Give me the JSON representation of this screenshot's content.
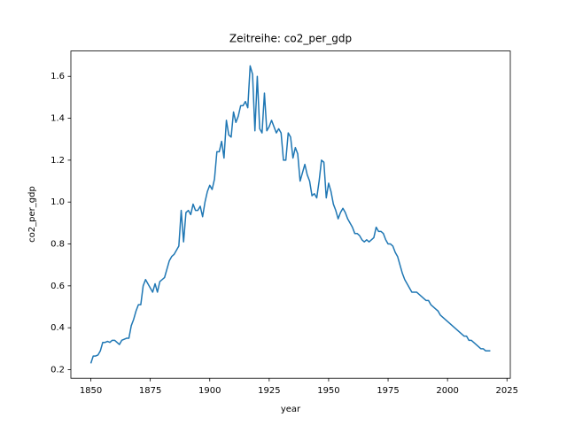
{
  "chart_data": {
    "type": "line",
    "title": "Zeitreihe: co2_per_gdp",
    "x_label": "year",
    "y_label": "co2_per_gdp",
    "color": "#1f77b4",
    "x": [
      1850,
      1851,
      1852,
      1853,
      1854,
      1855,
      1856,
      1857,
      1858,
      1859,
      1860,
      1861,
      1862,
      1863,
      1864,
      1865,
      1866,
      1867,
      1868,
      1869,
      1870,
      1871,
      1872,
      1873,
      1874,
      1875,
      1876,
      1877,
      1878,
      1879,
      1880,
      1881,
      1882,
      1883,
      1884,
      1885,
      1886,
      1887,
      1888,
      1889,
      1890,
      1891,
      1892,
      1893,
      1894,
      1895,
      1896,
      1897,
      1898,
      1899,
      1900,
      1901,
      1902,
      1903,
      1904,
      1905,
      1906,
      1907,
      1908,
      1909,
      1910,
      1911,
      1912,
      1913,
      1914,
      1915,
      1916,
      1917,
      1918,
      1919,
      1920,
      1921,
      1922,
      1923,
      1924,
      1925,
      1926,
      1927,
      1928,
      1929,
      1930,
      1931,
      1932,
      1933,
      1934,
      1935,
      1936,
      1937,
      1938,
      1939,
      1940,
      1941,
      1942,
      1943,
      1944,
      1945,
      1946,
      1947,
      1948,
      1949,
      1950,
      1951,
      1952,
      1953,
      1954,
      1955,
      1956,
      1957,
      1958,
      1959,
      1960,
      1961,
      1962,
      1963,
      1964,
      1965,
      1966,
      1967,
      1968,
      1969,
      1970,
      1971,
      1972,
      1973,
      1974,
      1975,
      1976,
      1977,
      1978,
      1979,
      1980,
      1981,
      1982,
      1983,
      1984,
      1985,
      1986,
      1987,
      1988,
      1989,
      1990,
      1991,
      1992,
      1993,
      1994,
      1995,
      1996,
      1997,
      1998,
      1999,
      2000,
      2001,
      2002,
      2003,
      2004,
      2005,
      2006,
      2007,
      2008,
      2009,
      2010,
      2011,
      2012,
      2013,
      2014,
      2015,
      2016,
      2017,
      2018
    ],
    "values": [
      0.23,
      0.265,
      0.265,
      0.27,
      0.29,
      0.33,
      0.33,
      0.335,
      0.33,
      0.34,
      0.34,
      0.33,
      0.32,
      0.34,
      0.345,
      0.35,
      0.35,
      0.41,
      0.44,
      0.48,
      0.51,
      0.51,
      0.6,
      0.63,
      0.61,
      0.59,
      0.57,
      0.61,
      0.57,
      0.62,
      0.63,
      0.64,
      0.68,
      0.72,
      0.74,
      0.75,
      0.77,
      0.79,
      0.96,
      0.81,
      0.95,
      0.96,
      0.94,
      0.99,
      0.96,
      0.96,
      0.98,
      0.93,
      1.0,
      1.05,
      1.08,
      1.06,
      1.11,
      1.24,
      1.24,
      1.29,
      1.21,
      1.39,
      1.32,
      1.31,
      1.43,
      1.38,
      1.41,
      1.46,
      1.46,
      1.48,
      1.45,
      1.65,
      1.61,
      1.34,
      1.6,
      1.35,
      1.33,
      1.52,
      1.34,
      1.36,
      1.39,
      1.36,
      1.33,
      1.35,
      1.33,
      1.2,
      1.2,
      1.33,
      1.31,
      1.21,
      1.26,
      1.23,
      1.1,
      1.14,
      1.18,
      1.13,
      1.1,
      1.03,
      1.04,
      1.02,
      1.1,
      1.2,
      1.19,
      1.02,
      1.09,
      1.05,
      0.99,
      0.96,
      0.92,
      0.95,
      0.97,
      0.95,
      0.92,
      0.9,
      0.88,
      0.85,
      0.85,
      0.84,
      0.82,
      0.81,
      0.82,
      0.81,
      0.82,
      0.83,
      0.88,
      0.86,
      0.86,
      0.85,
      0.82,
      0.8,
      0.8,
      0.79,
      0.76,
      0.74,
      0.7,
      0.66,
      0.63,
      0.61,
      0.59,
      0.57,
      0.57,
      0.57,
      0.56,
      0.55,
      0.54,
      0.53,
      0.53,
      0.51,
      0.5,
      0.49,
      0.48,
      0.46,
      0.45,
      0.44,
      0.43,
      0.42,
      0.41,
      0.4,
      0.39,
      0.38,
      0.37,
      0.36,
      0.36,
      0.34,
      0.34,
      0.33,
      0.32,
      0.31,
      0.3,
      0.3,
      0.29,
      0.29,
      0.29
    ],
    "xlim": [
      1841.6,
      2026.4
    ],
    "xticks": [
      1850,
      1875,
      1900,
      1925,
      1950,
      1975,
      2000,
      2025
    ],
    "ylim": [
      0.159,
      1.721
    ],
    "yticks": [
      0.2,
      0.4,
      0.6,
      0.8,
      {
        "value": 1,
        "label": "1.0"
      },
      1.2,
      1.4,
      1.6
    ]
  }
}
